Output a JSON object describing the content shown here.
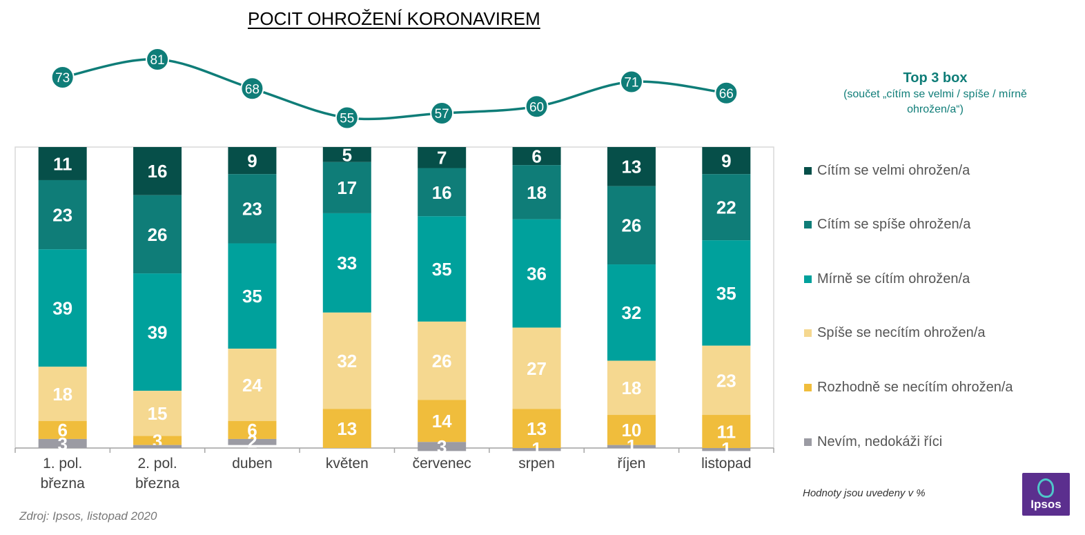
{
  "title": "POCIT OHROŽENÍ KORONAVIREM",
  "top3": {
    "title": "Top 3 box",
    "subtitle": "(součet „cítím se velmi / spíše / mírně ohrožen/a“)",
    "color": "#0f7d78"
  },
  "note": "Hodnoty jsou uvedeny v %",
  "source": "Zdroj: Ipsos, listopad 2020",
  "logo": {
    "text": "Ipsos",
    "icon": "ipsos-logo-icon"
  },
  "chart_data": {
    "type": "bar",
    "stacked": true,
    "categories": [
      "1. pol. března",
      "2. pol. března",
      "duben",
      "květen",
      "červenec",
      "srpen",
      "říjen",
      "listopad"
    ],
    "series": [
      {
        "name": "Cítím se velmi ohrožen/a",
        "color": "#064f49",
        "label_color": "#ffffff",
        "values": [
          11,
          16,
          9,
          5,
          7,
          6,
          13,
          9
        ]
      },
      {
        "name": "Cítím se spíše ohrožen/a",
        "color": "#0f7d78",
        "label_color": "#ffffff",
        "values": [
          23,
          26,
          23,
          17,
          16,
          18,
          26,
          22
        ]
      },
      {
        "name": "Mírně se cítím ohrožen/a",
        "color": "#00a19c",
        "label_color": "#ffffff",
        "values": [
          39,
          39,
          35,
          33,
          35,
          36,
          32,
          35
        ]
      },
      {
        "name": "Spíše se necítím ohrožen/a",
        "color": "#f5d890",
        "label_color": "#ffffff",
        "values": [
          18,
          15,
          24,
          32,
          26,
          27,
          18,
          23
        ]
      },
      {
        "name": "Rozhodně se necítím ohrožen/a",
        "color": "#f0bd3c",
        "label_color": "#ffffff",
        "values": [
          6,
          3,
          6,
          13,
          14,
          13,
          10,
          11
        ]
      },
      {
        "name": "Nevím, nedokáži říci",
        "color": "#9b9ba3",
        "label_color": "#ffffff",
        "values": [
          3,
          1,
          2,
          0,
          3,
          1,
          1,
          1
        ]
      }
    ],
    "value_labels": [
      [
        "11",
        "16",
        "9",
        "5",
        "7",
        "6",
        "13",
        "9"
      ],
      [
        "23",
        "26",
        "23",
        "17",
        "16",
        "18",
        "26",
        "22"
      ],
      [
        "39",
        "39",
        "35",
        "33",
        "35",
        "36",
        "32",
        "35"
      ],
      [
        "18",
        "15",
        "24",
        "32",
        "26",
        "27",
        "18",
        "23"
      ],
      [
        "6",
        "3",
        "6",
        "13",
        "14",
        "13",
        "10",
        "11"
      ],
      [
        "3",
        "",
        "2",
        "",
        "3",
        "1",
        "1",
        "1"
      ]
    ],
    "line": {
      "name": "Top 3 box",
      "color": "#0f7d78",
      "values": [
        73,
        81,
        68,
        55,
        57,
        60,
        71,
        66
      ]
    },
    "ylim": [
      0,
      100
    ],
    "grid": false,
    "legend_position": "right"
  }
}
